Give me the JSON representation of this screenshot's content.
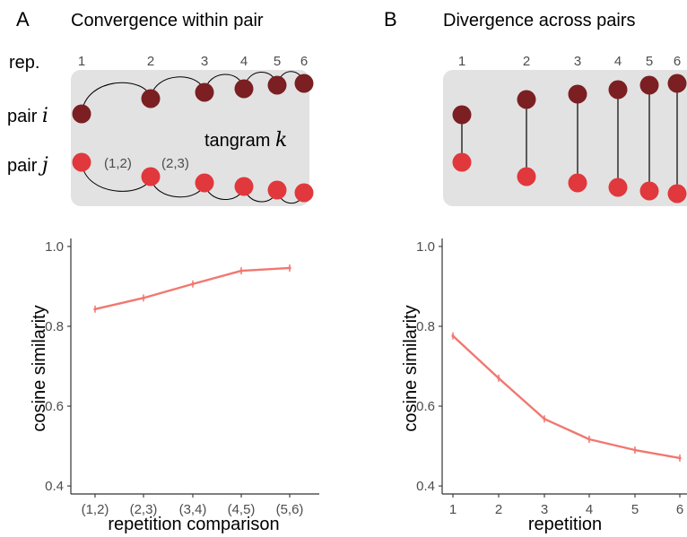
{
  "colors": {
    "dark": "#7b1f22",
    "light": "#e0383c",
    "line": "#f07870",
    "box": "#e2e2e2",
    "axis": "#333333"
  },
  "panelA": {
    "letter": "A",
    "title": "Convergence within pair",
    "rep_label": "rep.",
    "rep_numbers": [
      "1",
      "2",
      "3",
      "4",
      "5",
      "6"
    ],
    "pair_i_word": "pair",
    "pair_i_var": "i",
    "pair_j_word": "pair",
    "pair_j_var": "j",
    "tangram_word": "tangram",
    "tangram_var": "k",
    "annot_12": "(1,2)",
    "annot_23": "(2,3)"
  },
  "panelB": {
    "letter": "B",
    "title": "Divergence across pairs",
    "rep_numbers": [
      "1",
      "2",
      "3",
      "4",
      "5",
      "6"
    ]
  },
  "chart_data": [
    {
      "type": "line",
      "categories": [
        "(1,2)",
        "(2,3)",
        "(3,4)",
        "(4,5)",
        "(5,6)"
      ],
      "values": [
        0.843,
        0.871,
        0.906,
        0.939,
        0.946
      ],
      "xlabel": "repetition comparison",
      "ylabel": "cosine similarity",
      "ylim": [
        0.38,
        1.02
      ],
      "yticks": [
        "0.4",
        "0.6",
        "0.8",
        "1.0"
      ],
      "grid": false
    },
    {
      "type": "line",
      "x": [
        1,
        2,
        3,
        4,
        5,
        6
      ],
      "xticks": [
        "1",
        "2",
        "3",
        "4",
        "5",
        "6"
      ],
      "values": [
        0.776,
        0.67,
        0.568,
        0.517,
        0.49,
        0.47
      ],
      "xlabel": "repetition",
      "ylabel": "cosine similarity",
      "ylim": [
        0.38,
        1.02
      ],
      "yticks": [
        "0.4",
        "0.6",
        "0.8",
        "1.0"
      ],
      "grid": false
    }
  ]
}
